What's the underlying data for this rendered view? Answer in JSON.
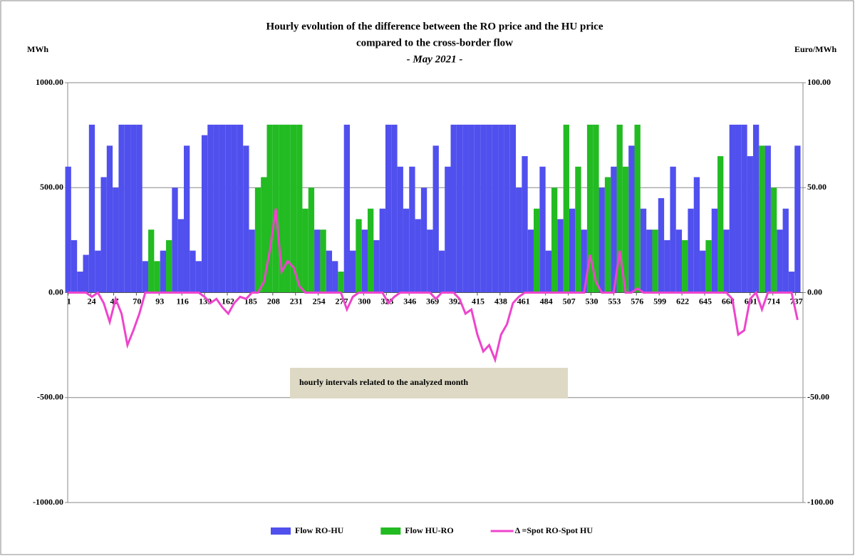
{
  "chart_data": {
    "type": "bar-line",
    "title": [
      "Hourly evolution of the difference between the RO price and the HU price",
      "compared to the cross-border flow",
      "- May 2021 -"
    ],
    "y_label": "MWh",
    "y2_label": "Euro/MWh",
    "annotation": "hourly intervals related to the analyzed month",
    "x": [
      1,
      7,
      13,
      19,
      25,
      31,
      37,
      43,
      49,
      55,
      61,
      67,
      73,
      79,
      85,
      91,
      97,
      103,
      109,
      115,
      121,
      127,
      133,
      139,
      145,
      151,
      157,
      163,
      169,
      175,
      181,
      187,
      193,
      199,
      205,
      211,
      217,
      223,
      229,
      235,
      241,
      247,
      253,
      259,
      265,
      271,
      277,
      283,
      289,
      295,
      301,
      307,
      313,
      319,
      325,
      331,
      337,
      343,
      349,
      355,
      361,
      367,
      373,
      379,
      385,
      391,
      397,
      403,
      409,
      415,
      421,
      427,
      433,
      439,
      445,
      451,
      457,
      463,
      469,
      475,
      481,
      487,
      493,
      499,
      505,
      511,
      517,
      523,
      529,
      535,
      541,
      547,
      553,
      559,
      565,
      571,
      577,
      583,
      589,
      595,
      601,
      607,
      613,
      619,
      625,
      631,
      637,
      643,
      649,
      655,
      661,
      667,
      673,
      679,
      685,
      691,
      697,
      703,
      709,
      715,
      721,
      727,
      733,
      739
    ],
    "xlim": [
      0.5,
      744.5
    ],
    "xticks": [
      1,
      24,
      47,
      70,
      93,
      116,
      139,
      162,
      185,
      208,
      231,
      254,
      277,
      300,
      323,
      346,
      369,
      392,
      415,
      438,
      461,
      484,
      507,
      530,
      553,
      576,
      599,
      622,
      645,
      668,
      691,
      714,
      737
    ],
    "ylim": [
      -1000,
      1000
    ],
    "yticks": [
      {
        "value": -1000,
        "label": "-1000.00"
      },
      {
        "value": -500,
        "label": "-500.00"
      },
      {
        "value": 0,
        "label": "0.00"
      },
      {
        "value": 500,
        "label": "500.00"
      },
      {
        "value": 1000,
        "label": "1000.00"
      }
    ],
    "y2lim": [
      -100,
      100
    ],
    "y2ticks": [
      {
        "value": -100,
        "label": "-100.00"
      },
      {
        "value": -50,
        "label": "-50.00"
      },
      {
        "value": 0,
        "label": "0.00"
      },
      {
        "value": 50,
        "label": "50.00"
      },
      {
        "value": 100,
        "label": "100.00"
      }
    ],
    "grid": true,
    "legend": "bottom",
    "series": [
      {
        "name": "Flow RO-HU",
        "color": "#5050ee",
        "kind": "bar",
        "values": [
          600,
          250,
          100,
          180,
          800,
          200,
          550,
          700,
          500,
          800,
          800,
          800,
          800,
          150,
          0,
          0,
          200,
          0,
          500,
          350,
          700,
          200,
          150,
          750,
          800,
          800,
          800,
          800,
          800,
          800,
          700,
          300,
          0,
          0,
          0,
          0,
          0,
          0,
          0,
          0,
          0,
          0,
          300,
          0,
          200,
          150,
          0,
          800,
          200,
          0,
          300,
          0,
          250,
          400,
          800,
          800,
          600,
          400,
          600,
          350,
          500,
          300,
          700,
          200,
          600,
          800,
          800,
          800,
          800,
          800,
          800,
          800,
          800,
          800,
          800,
          800,
          500,
          650,
          300,
          0,
          600,
          200,
          0,
          350,
          0,
          400,
          0,
          300,
          0,
          0,
          500,
          0,
          600,
          0,
          0,
          700,
          0,
          400,
          300,
          0,
          450,
          250,
          600,
          300,
          0,
          400,
          550,
          200,
          0,
          400,
          0,
          300,
          800,
          800,
          800,
          650,
          800,
          0,
          700,
          0,
          300,
          400,
          100,
          700
        ]
      },
      {
        "name": "Flow HU-RO",
        "color": "#22bb22",
        "kind": "bar",
        "values": [
          0,
          0,
          0,
          0,
          0,
          0,
          0,
          0,
          0,
          0,
          0,
          0,
          0,
          0,
          300,
          150,
          0,
          250,
          0,
          0,
          0,
          0,
          0,
          0,
          0,
          0,
          0,
          0,
          0,
          0,
          0,
          0,
          500,
          550,
          800,
          800,
          800,
          800,
          800,
          800,
          400,
          500,
          0,
          300,
          0,
          0,
          100,
          0,
          0,
          350,
          0,
          400,
          0,
          0,
          0,
          0,
          0,
          0,
          0,
          0,
          0,
          0,
          0,
          0,
          0,
          0,
          0,
          0,
          0,
          0,
          0,
          0,
          0,
          0,
          0,
          0,
          0,
          0,
          0,
          400,
          0,
          0,
          500,
          0,
          800,
          0,
          600,
          0,
          800,
          800,
          0,
          550,
          0,
          800,
          600,
          0,
          800,
          0,
          0,
          300,
          0,
          0,
          0,
          0,
          250,
          0,
          0,
          0,
          250,
          0,
          650,
          0,
          0,
          0,
          0,
          0,
          0,
          700,
          0,
          500,
          0,
          0,
          0,
          0
        ]
      },
      {
        "name": "Δ =Spot RO-Spot HU",
        "color": "#ee44cc",
        "kind": "line",
        "axis": "y2",
        "values": [
          0,
          0,
          0,
          0,
          -2,
          0,
          -5,
          -14,
          -3,
          -10,
          -25,
          -18,
          -10,
          0,
          0,
          0,
          0,
          0,
          0,
          0,
          0,
          0,
          0,
          -2,
          -5,
          -3,
          -7,
          -10,
          -5,
          -2,
          -3,
          0,
          0,
          5,
          20,
          40,
          10,
          15,
          12,
          3,
          0,
          0,
          0,
          0,
          0,
          0,
          0,
          -8,
          -2,
          0,
          0,
          0,
          0,
          0,
          -5,
          -2,
          0,
          0,
          0,
          0,
          0,
          0,
          -3,
          0,
          0,
          0,
          -3,
          -10,
          -8,
          -20,
          -28,
          -25,
          -32,
          -20,
          -15,
          -5,
          -2,
          0,
          0,
          0,
          0,
          0,
          0,
          0,
          0,
          0,
          0,
          0,
          18,
          5,
          0,
          0,
          0,
          20,
          0,
          0,
          2,
          0,
          0,
          0,
          0,
          0,
          0,
          0,
          0,
          0,
          0,
          0,
          0,
          0,
          0,
          0,
          -3,
          -20,
          -18,
          -3,
          0,
          -8,
          0,
          0,
          0,
          0,
          0,
          -13
        ]
      }
    ]
  }
}
